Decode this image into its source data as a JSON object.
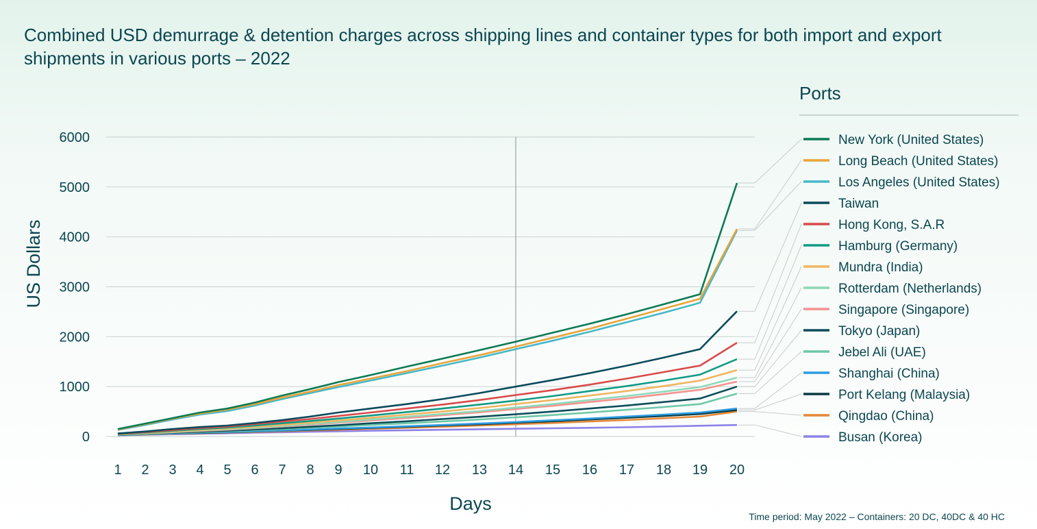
{
  "chart_data": {
    "type": "line",
    "title": "Combined USD demurrage & detention charges across shipping lines and container types for both import and export shipments in various ports – 2022",
    "xlabel": "Days",
    "ylabel": "US Dollars",
    "x": [
      1,
      2,
      3,
      4,
      5,
      6,
      7,
      8,
      9,
      10,
      11,
      12,
      13,
      14,
      15,
      16,
      17,
      18,
      19,
      20
    ],
    "ylim": [
      0,
      6000
    ],
    "yticks": [
      0,
      1000,
      2000,
      3000,
      4000,
      5000,
      6000
    ],
    "grid": "horizontal",
    "highlight_x": 14,
    "legend_title": "Ports",
    "legend_placement": "right",
    "footnote": "Time period: May 2022 – Containers: 20 DC, 40DC & 40 HC",
    "series": [
      {
        "name": "New York (United States)",
        "color": "#0b7a55",
        "values": [
          150,
          260,
          370,
          480,
          560,
          680,
          820,
          950,
          1090,
          1230,
          1400,
          1560,
          1730,
          1900,
          2080,
          2260,
          2450,
          2650,
          2850,
          5080
        ]
      },
      {
        "name": "Long Beach (United States)",
        "color": "#e8a43a",
        "values": [
          140,
          250,
          360,
          460,
          540,
          650,
          780,
          900,
          1030,
          1160,
          1310,
          1470,
          1630,
          1800,
          1980,
          2160,
          2360,
          2560,
          2760,
          4160
        ]
      },
      {
        "name": "Los Angeles (United States)",
        "color": "#45b7c9",
        "values": [
          130,
          230,
          340,
          440,
          510,
          620,
          750,
          870,
          990,
          1120,
          1270,
          1420,
          1580,
          1750,
          1920,
          2100,
          2290,
          2480,
          2680,
          4130
        ]
      },
      {
        "name": "Taiwan",
        "color": "#0a4a5c",
        "values": [
          60,
          100,
          150,
          190,
          220,
          270,
          330,
          400,
          480,
          560,
          650,
          750,
          870,
          1000,
          1130,
          1270,
          1420,
          1580,
          1750,
          2510
        ]
      },
      {
        "name": "Hong Kong, S.A.R",
        "color": "#d94a4a",
        "values": [
          55,
          90,
          130,
          170,
          200,
          250,
          300,
          350,
          410,
          480,
          560,
          640,
          730,
          830,
          930,
          1040,
          1160,
          1290,
          1420,
          1880
        ]
      },
      {
        "name": "Hamburg (Germany)",
        "color": "#129a85",
        "values": [
          50,
          80,
          115,
          150,
          180,
          220,
          265,
          310,
          360,
          420,
          490,
          560,
          640,
          720,
          810,
          910,
          1010,
          1120,
          1240,
          1550
        ]
      },
      {
        "name": "Mundra (India)",
        "color": "#f0b560",
        "values": [
          45,
          70,
          100,
          130,
          160,
          195,
          235,
          275,
          320,
          375,
          440,
          500,
          570,
          650,
          730,
          820,
          910,
          1010,
          1120,
          1330
        ]
      },
      {
        "name": "Rotterdam (Netherlands)",
        "color": "#8ed8b8",
        "values": [
          40,
          65,
          90,
          120,
          145,
          175,
          210,
          250,
          290,
          340,
          395,
          450,
          510,
          580,
          650,
          730,
          810,
          900,
          990,
          1180
        ]
      },
      {
        "name": "Singapore (Singapore)",
        "color": "#f4928f",
        "values": [
          40,
          60,
          85,
          110,
          135,
          165,
          200,
          235,
          275,
          320,
          370,
          425,
          485,
          550,
          615,
          690,
          765,
          850,
          935,
          1100
        ]
      },
      {
        "name": "Tokyo (Japan)",
        "color": "#0c4d5a",
        "values": [
          35,
          55,
          75,
          95,
          115,
          140,
          165,
          195,
          225,
          265,
          305,
          350,
          395,
          445,
          500,
          560,
          620,
          690,
          760,
          1000
        ]
      },
      {
        "name": "Jebel Ali (UAE)",
        "color": "#6cc8a6",
        "values": [
          35,
          50,
          70,
          85,
          105,
          125,
          150,
          175,
          200,
          230,
          265,
          300,
          340,
          385,
          430,
          480,
          535,
          590,
          650,
          860
        ]
      },
      {
        "name": "Shanghai (China)",
        "color": "#2d9be0",
        "values": [
          30,
          45,
          60,
          75,
          90,
          105,
          120,
          140,
          160,
          180,
          205,
          230,
          260,
          290,
          325,
          360,
          400,
          440,
          480,
          560
        ]
      },
      {
        "name": "Port Kelang (Malaysia)",
        "color": "#0b3d40",
        "values": [
          30,
          45,
          60,
          70,
          85,
          100,
          115,
          130,
          150,
          170,
          195,
          220,
          245,
          275,
          305,
          340,
          375,
          410,
          450,
          530
        ]
      },
      {
        "name": "Qingdao (China)",
        "color": "#e5883a",
        "values": [
          30,
          40,
          55,
          65,
          80,
          90,
          105,
          120,
          135,
          155,
          175,
          195,
          220,
          245,
          270,
          300,
          330,
          365,
          400,
          500
        ]
      },
      {
        "name": "Busan (Korea)",
        "color": "#8d82e8",
        "values": [
          25,
          35,
          45,
          55,
          65,
          75,
          85,
          95,
          105,
          115,
          125,
          135,
          145,
          155,
          165,
          175,
          185,
          200,
          215,
          230
        ]
      }
    ]
  }
}
